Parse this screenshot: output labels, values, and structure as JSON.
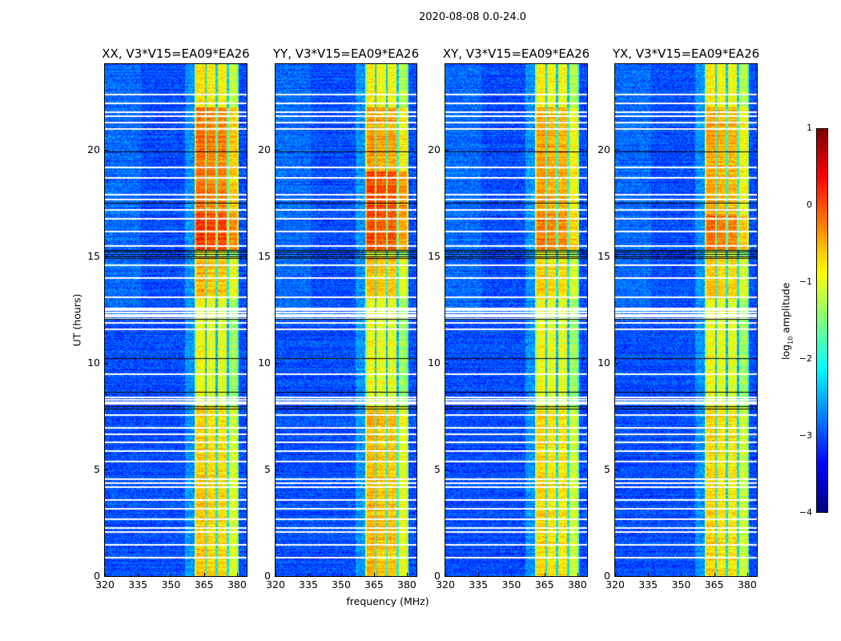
{
  "suptitle": "2020-08-08 0.0-24.0",
  "chart_data": {
    "type": "heatmap",
    "title": "2020-08-08 0.0-24.0",
    "xlabel": "frequency (MHz)",
    "ylabel": "UT (hours)",
    "xlim": [
      320,
      384.4
    ],
    "ylim": [
      0,
      24
    ],
    "xticks": [
      "320",
      "335",
      "350",
      "365",
      "380"
    ],
    "xtick_values": [
      320,
      335,
      350,
      365,
      380
    ],
    "yticks": [
      "0",
      "5",
      "10",
      "15",
      "20"
    ],
    "ytick_values": [
      0,
      5,
      10,
      15,
      20
    ],
    "colorbar": {
      "label_prefix": "log",
      "label_sub": "10",
      "label_suffix": " amplitude",
      "range": [
        -4,
        1
      ],
      "colormap": "jet",
      "ticks": [
        "1",
        "0",
        "−1",
        "−2",
        "−3",
        "−4"
      ],
      "tick_values": [
        1,
        0,
        -1,
        -2,
        -3,
        -4
      ]
    },
    "rfi_band_mhz": [
      360.7,
      380.4
    ],
    "subband_edges_mhz": [
      365.6,
      370.6,
      375.6
    ],
    "background_log_amp": -3.0,
    "flagged_rows_white_hours": [
      0.9,
      1.5,
      2.1,
      2.3,
      2.7,
      3.2,
      3.6,
      4.2,
      4.4,
      4.6,
      5.4,
      5.9,
      6.3,
      6.7,
      7.0,
      7.6,
      8.1,
      8.2,
      8.3,
      8.4,
      9.5,
      11.6,
      11.9,
      12.1,
      12.2,
      12.3,
      12.4,
      12.5,
      12.6,
      13.1,
      14.0,
      14.6,
      15.5,
      16.2,
      16.8,
      17.2,
      17.7,
      17.9,
      18.7,
      19.2,
      21.0,
      21.3,
      21.6,
      21.8,
      22.2,
      22.6
    ],
    "flagged_rows_black_hours": [
      7.85,
      7.95,
      8.65,
      10.2,
      12.05,
      14.9,
      15.0,
      15.1,
      15.2,
      15.3,
      17.5,
      19.9
    ],
    "panels": [
      {
        "title": "XX, V3*V15=EA09*EA26",
        "band_levels": [
          [
            0,
            8,
            -0.7
          ],
          [
            8,
            13,
            -1.0
          ],
          [
            13,
            15,
            -0.6
          ],
          [
            15.3,
            17,
            0.05
          ],
          [
            17,
            22,
            -0.25
          ],
          [
            22,
            24,
            -0.8
          ]
        ]
      },
      {
        "title": "YY, V3*V15=EA09*EA26",
        "band_levels": [
          [
            0,
            8,
            -0.6
          ],
          [
            8,
            13,
            -1.0
          ],
          [
            13,
            15,
            -0.6
          ],
          [
            15.3,
            19,
            -0.05
          ],
          [
            19,
            22,
            -0.45
          ],
          [
            22,
            24,
            -0.9
          ]
        ]
      },
      {
        "title": "XY, V3*V15=EA09*EA26",
        "band_levels": [
          [
            0,
            8,
            -0.75
          ],
          [
            8,
            13,
            -1.0
          ],
          [
            13,
            15,
            -0.7
          ],
          [
            15.3,
            17,
            -0.3
          ],
          [
            17,
            22,
            -0.5
          ],
          [
            22,
            24,
            -0.9
          ]
        ]
      },
      {
        "title": "YX, V3*V15=EA09*EA26",
        "band_levels": [
          [
            0,
            8,
            -0.75
          ],
          [
            8,
            13,
            -1.0
          ],
          [
            13,
            15,
            -0.7
          ],
          [
            15.3,
            17,
            -0.25
          ],
          [
            17,
            22,
            -0.5
          ],
          [
            22,
            24,
            -0.9
          ]
        ]
      }
    ]
  }
}
